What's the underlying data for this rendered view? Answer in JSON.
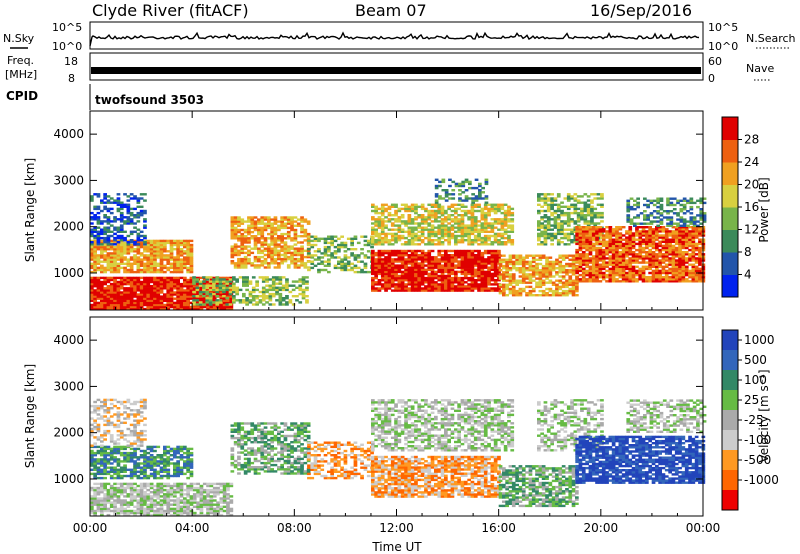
{
  "header": {
    "station": "Clyde River (fitACF)",
    "beam": "Beam 07",
    "date": "16/Sep/2016"
  },
  "noise_panel": {
    "left_label": "N.Sky",
    "right_label": "N.Search",
    "left_ticks": [
      "10^5",
      "10^0"
    ],
    "right_ticks": [
      "10^5",
      "10^0"
    ]
  },
  "freq_panel": {
    "left_label_line1": "Freq.",
    "left_label_line2": "[MHz]",
    "left_ticks": [
      "18",
      "8"
    ],
    "right_label": "Nave",
    "right_ticks": [
      "60",
      "0"
    ]
  },
  "cpid": {
    "label": "CPID",
    "value": "twofsound 3503"
  },
  "chart_data": [
    {
      "type": "heatmap",
      "name": "power",
      "ylabel": "Slant Range [km]",
      "x_ticks": [
        "00:00",
        "04:00",
        "08:00",
        "12:00",
        "16:00",
        "20:00",
        "00:00"
      ],
      "y_ticks": [
        1000,
        2000,
        3000,
        4000
      ],
      "ylim": [
        200,
        4500
      ],
      "xlim_hours": [
        0,
        24
      ],
      "colorbar_label": "Power [dB]",
      "colorbar_ticks": [
        4,
        8,
        12,
        16,
        20,
        24,
        28
      ],
      "colorbar_colors": [
        "#0022ee",
        "#2255aa",
        "#3b8a5a",
        "#78b44a",
        "#d8d040",
        "#f0a020",
        "#ee6010",
        "#e00000"
      ]
    },
    {
      "type": "heatmap",
      "name": "velocity",
      "ylabel": "Slant Range [km]",
      "xlabel": "Time UT",
      "x_ticks": [
        "00:00",
        "04:00",
        "08:00",
        "12:00",
        "16:00",
        "20:00",
        "00:00"
      ],
      "y_ticks": [
        1000,
        2000,
        3000,
        4000
      ],
      "ylim": [
        200,
        4500
      ],
      "xlim_hours": [
        0,
        24
      ],
      "colorbar_label": "Velocity [m s⁻¹]",
      "colorbar_ticks": [
        1000,
        500,
        100,
        25,
        -25,
        -100,
        -500,
        -1000
      ],
      "colorbar_colors": [
        "#2244bb",
        "#3366bb",
        "#338866",
        "#66bb44",
        "#aaaaaa",
        "#cccccc",
        "#ff9922",
        "#ff6600",
        "#ee0000"
      ]
    }
  ]
}
